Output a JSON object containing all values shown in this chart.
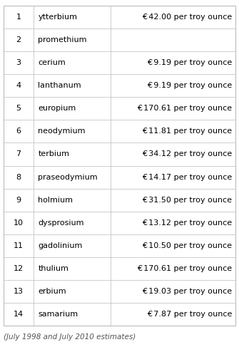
{
  "rows": [
    {
      "rank": "1",
      "element": "ytterbium",
      "price": "€ 42.00 per troy ounce"
    },
    {
      "rank": "2",
      "element": "promethium",
      "price": ""
    },
    {
      "rank": "3",
      "element": "cerium",
      "price": "€ 9.19 per troy ounce"
    },
    {
      "rank": "4",
      "element": "lanthanum",
      "price": "€ 9.19 per troy ounce"
    },
    {
      "rank": "5",
      "element": "europium",
      "price": "€ 170.61 per troy ounce"
    },
    {
      "rank": "6",
      "element": "neodymium",
      "price": "€ 11.81 per troy ounce"
    },
    {
      "rank": "7",
      "element": "terbium",
      "price": "€ 34.12 per troy ounce"
    },
    {
      "rank": "8",
      "element": "praseodymium",
      "price": "€ 14.17 per troy ounce"
    },
    {
      "rank": "9",
      "element": "holmium",
      "price": "€ 31.50 per troy ounce"
    },
    {
      "rank": "10",
      "element": "dysprosium",
      "price": "€ 13.12 per troy ounce"
    },
    {
      "rank": "11",
      "element": "gadolinium",
      "price": "€ 10.50 per troy ounce"
    },
    {
      "rank": "12",
      "element": "thulium",
      "price": "€ 170.61 per troy ounce"
    },
    {
      "rank": "13",
      "element": "erbium",
      "price": "€ 19.03 per troy ounce"
    },
    {
      "rank": "14",
      "element": "samarium",
      "price": "€ 7.87 per troy ounce"
    }
  ],
  "footnote": "(July 1998 and July 2010 estimates)",
  "bg_color": "#ffffff",
  "border_color": "#bbbbbb",
  "text_color": "#000000",
  "font_size": 8.0,
  "footnote_font_size": 7.5
}
